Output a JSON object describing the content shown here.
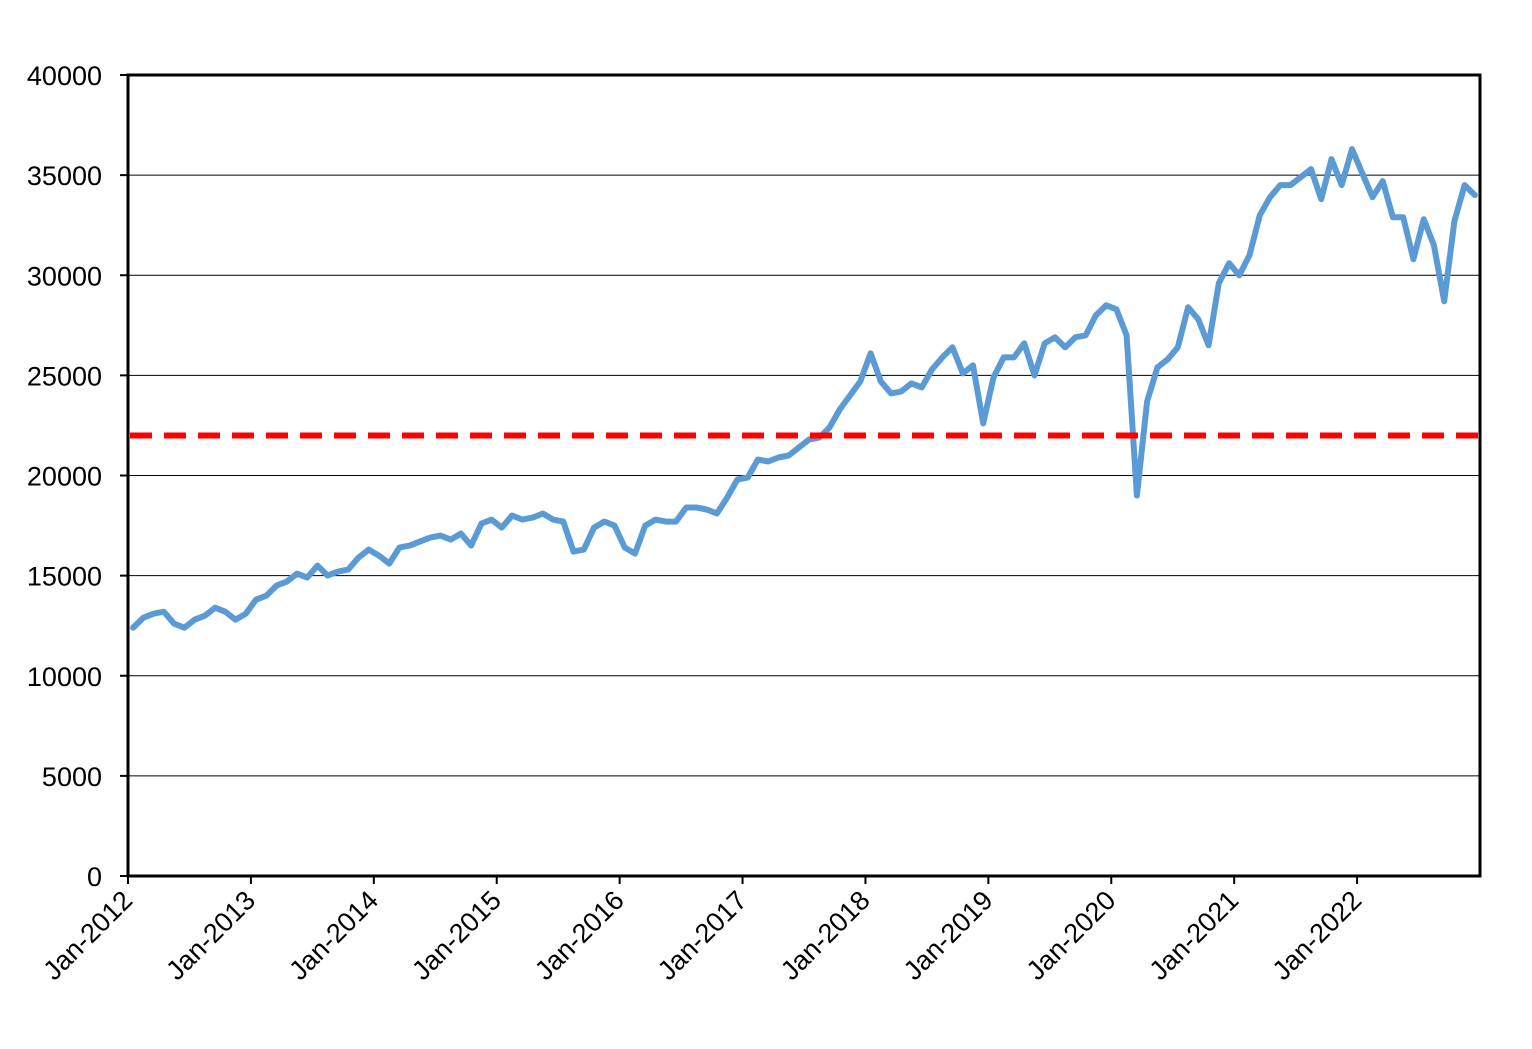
{
  "chart_data": {
    "type": "line",
    "title": "",
    "xlabel": "",
    "ylabel": "",
    "ylim": [
      0,
      40000
    ],
    "yticks": [
      0,
      5000,
      10000,
      15000,
      20000,
      25000,
      30000,
      35000,
      40000
    ],
    "xlim": [
      "2012-01",
      "2022-12"
    ],
    "xticks": [
      "Jan-2012",
      "Jan-2013",
      "Jan-2014",
      "Jan-2015",
      "Jan-2016",
      "Jan-2017",
      "Jan-2018",
      "Jan-2019",
      "Jan-2020",
      "Jan-2021",
      "Jan-2022"
    ],
    "grid": true,
    "legend": "none",
    "series": [
      {
        "color": "#5B9BD5",
        "points": [
          [
            "2012-01",
            12400
          ],
          [
            "2012-02",
            12900
          ],
          [
            "2012-03",
            13100
          ],
          [
            "2012-04",
            13200
          ],
          [
            "2012-05",
            12600
          ],
          [
            "2012-06",
            12400
          ],
          [
            "2012-07",
            12800
          ],
          [
            "2012-08",
            13000
          ],
          [
            "2012-09",
            13400
          ],
          [
            "2012-10",
            13200
          ],
          [
            "2012-11",
            12800
          ],
          [
            "2012-12",
            13100
          ],
          [
            "2013-01",
            13800
          ],
          [
            "2013-02",
            14000
          ],
          [
            "2013-03",
            14500
          ],
          [
            "2013-04",
            14700
          ],
          [
            "2013-05",
            15100
          ],
          [
            "2013-06",
            14900
          ],
          [
            "2013-07",
            15500
          ],
          [
            "2013-08",
            15000
          ],
          [
            "2013-09",
            15200
          ],
          [
            "2013-10",
            15300
          ],
          [
            "2013-11",
            15900
          ],
          [
            "2013-12",
            16300
          ],
          [
            "2014-01",
            16000
          ],
          [
            "2014-02",
            15600
          ],
          [
            "2014-03",
            16400
          ],
          [
            "2014-04",
            16500
          ],
          [
            "2014-05",
            16700
          ],
          [
            "2014-06",
            16900
          ],
          [
            "2014-07",
            17000
          ],
          [
            "2014-08",
            16800
          ],
          [
            "2014-09",
            17100
          ],
          [
            "2014-10",
            16500
          ],
          [
            "2014-11",
            17600
          ],
          [
            "2014-12",
            17800
          ],
          [
            "2015-01",
            17400
          ],
          [
            "2015-02",
            18000
          ],
          [
            "2015-03",
            17800
          ],
          [
            "2015-04",
            17900
          ],
          [
            "2015-05",
            18100
          ],
          [
            "2015-06",
            17800
          ],
          [
            "2015-07",
            17700
          ],
          [
            "2015-08",
            16200
          ],
          [
            "2015-09",
            16300
          ],
          [
            "2015-10",
            17400
          ],
          [
            "2015-11",
            17700
          ],
          [
            "2015-12",
            17500
          ],
          [
            "2016-01",
            16400
          ],
          [
            "2016-02",
            16100
          ],
          [
            "2016-03",
            17500
          ],
          [
            "2016-04",
            17800
          ],
          [
            "2016-05",
            17700
          ],
          [
            "2016-06",
            17700
          ],
          [
            "2016-07",
            18400
          ],
          [
            "2016-08",
            18400
          ],
          [
            "2016-09",
            18300
          ],
          [
            "2016-10",
            18100
          ],
          [
            "2016-11",
            18900
          ],
          [
            "2016-12",
            19800
          ],
          [
            "2017-01",
            19900
          ],
          [
            "2017-02",
            20800
          ],
          [
            "2017-03",
            20700
          ],
          [
            "2017-04",
            20900
          ],
          [
            "2017-05",
            21000
          ],
          [
            "2017-06",
            21400
          ],
          [
            "2017-07",
            21800
          ],
          [
            "2017-08",
            21900
          ],
          [
            "2017-09",
            22400
          ],
          [
            "2017-10",
            23300
          ],
          [
            "2017-11",
            24000
          ],
          [
            "2017-12",
            24700
          ],
          [
            "2018-01",
            26100
          ],
          [
            "2018-02",
            24700
          ],
          [
            "2018-03",
            24100
          ],
          [
            "2018-04",
            24200
          ],
          [
            "2018-05",
            24600
          ],
          [
            "2018-06",
            24400
          ],
          [
            "2018-07",
            25300
          ],
          [
            "2018-08",
            25900
          ],
          [
            "2018-09",
            26400
          ],
          [
            "2018-10",
            25100
          ],
          [
            "2018-11",
            25500
          ],
          [
            "2018-12",
            22600
          ],
          [
            "2019-01",
            24900
          ],
          [
            "2019-02",
            25900
          ],
          [
            "2019-03",
            25900
          ],
          [
            "2019-04",
            26600
          ],
          [
            "2019-05",
            25000
          ],
          [
            "2019-06",
            26600
          ],
          [
            "2019-07",
            26900
          ],
          [
            "2019-08",
            26400
          ],
          [
            "2019-09",
            26900
          ],
          [
            "2019-10",
            27000
          ],
          [
            "2019-11",
            28000
          ],
          [
            "2019-12",
            28500
          ],
          [
            "2020-01",
            28300
          ],
          [
            "2020-02",
            27000
          ],
          [
            "2020-03",
            19000
          ],
          [
            "2020-04",
            23700
          ],
          [
            "2020-05",
            25400
          ],
          [
            "2020-06",
            25800
          ],
          [
            "2020-07",
            26400
          ],
          [
            "2020-08",
            28400
          ],
          [
            "2020-09",
            27800
          ],
          [
            "2020-10",
            26500
          ],
          [
            "2020-11",
            29600
          ],
          [
            "2020-12",
            30600
          ],
          [
            "2021-01",
            30000
          ],
          [
            "2021-02",
            31000
          ],
          [
            "2021-03",
            33000
          ],
          [
            "2021-04",
            33900
          ],
          [
            "2021-05",
            34500
          ],
          [
            "2021-06",
            34500
          ],
          [
            "2021-07",
            34900
          ],
          [
            "2021-08",
            35300
          ],
          [
            "2021-09",
            33800
          ],
          [
            "2021-10",
            35800
          ],
          [
            "2021-11",
            34500
          ],
          [
            "2021-12",
            36300
          ],
          [
            "2022-01",
            35100
          ],
          [
            "2022-02",
            33900
          ],
          [
            "2022-03",
            34700
          ],
          [
            "2022-04",
            32900
          ],
          [
            "2022-05",
            32900
          ],
          [
            "2022-06",
            30800
          ],
          [
            "2022-07",
            32800
          ],
          [
            "2022-08",
            31500
          ],
          [
            "2022-09",
            28700
          ],
          [
            "2022-10",
            32700
          ],
          [
            "2022-11",
            34500
          ],
          [
            "2022-12",
            34000
          ]
        ]
      }
    ],
    "reference_line": {
      "value": 22000,
      "style": "dashed",
      "color": "#FF0000"
    }
  }
}
